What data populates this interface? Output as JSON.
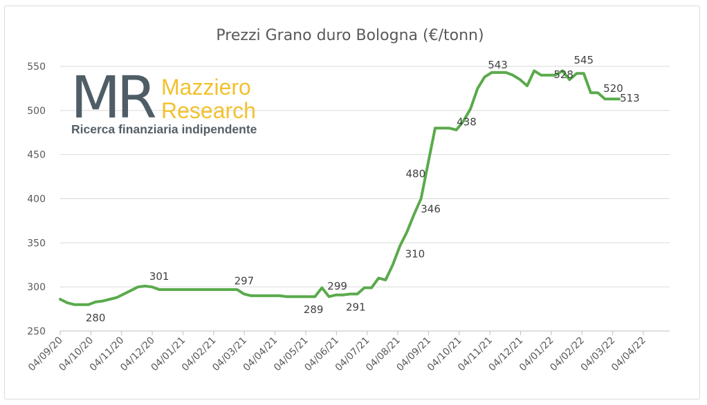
{
  "chart_data": {
    "type": "line",
    "title": "Prezzi Grano duro Bologna (€/tonn)",
    "xlabel": "",
    "ylabel": "",
    "ylim": [
      250,
      550
    ],
    "y_ticks": [
      250,
      300,
      350,
      400,
      450,
      500,
      550
    ],
    "x_ticks": [
      "04/09/20",
      "04/10/20",
      "04/11/20",
      "04/12/20",
      "04/01/21",
      "04/02/21",
      "04/03/21",
      "04/04/21",
      "04/05/21",
      "04/06/21",
      "04/07/21",
      "04/08/21",
      "04/09/21",
      "04/10/21",
      "04/11/21",
      "04/12/21",
      "04/01/22",
      "04/02/22",
      "04/03/22",
      "04/04/22"
    ],
    "grid": "horizontal",
    "line_color": "#5aaa4c",
    "series": [
      {
        "x": [
          "2020-09-04",
          "2020-09-11",
          "2020-09-18",
          "2020-09-25",
          "2020-10-02",
          "2020-10-09",
          "2020-10-16",
          "2020-10-23",
          "2020-10-30",
          "2020-11-06",
          "2020-11-13",
          "2020-11-20",
          "2020-11-27",
          "2020-12-04",
          "2020-12-11",
          "2020-12-18",
          "2020-12-25",
          "2021-01-01",
          "2021-01-08",
          "2021-01-15",
          "2021-01-22",
          "2021-01-29",
          "2021-02-05",
          "2021-02-12",
          "2021-02-19",
          "2021-02-26",
          "2021-03-05",
          "2021-03-12",
          "2021-03-19",
          "2021-03-26",
          "2021-04-02",
          "2021-04-09",
          "2021-04-16",
          "2021-04-23",
          "2021-04-30",
          "2021-05-07",
          "2021-05-14",
          "2021-05-21",
          "2021-05-28",
          "2021-06-04",
          "2021-06-11",
          "2021-06-18",
          "2021-06-25",
          "2021-07-02",
          "2021-07-09",
          "2021-07-16",
          "2021-07-23",
          "2021-07-30",
          "2021-08-06",
          "2021-08-13",
          "2021-08-20",
          "2021-08-27",
          "2021-09-03",
          "2021-09-10",
          "2021-09-17",
          "2021-09-24",
          "2021-10-01",
          "2021-10-08",
          "2021-10-15",
          "2021-10-22",
          "2021-10-29",
          "2021-11-05",
          "2021-11-12",
          "2021-11-19",
          "2021-11-26",
          "2021-12-03",
          "2021-12-10",
          "2021-12-17",
          "2021-12-24",
          "2021-12-31",
          "2022-01-07",
          "2022-01-14",
          "2022-01-21",
          "2022-01-28",
          "2022-02-04",
          "2022-02-11",
          "2022-02-18",
          "2022-02-25",
          "2022-03-04",
          "2022-03-11"
        ],
        "values": [
          286,
          282,
          280,
          280,
          280,
          283,
          284,
          286,
          288,
          292,
          296,
          300,
          301,
          300,
          297,
          297,
          297,
          297,
          297,
          297,
          297,
          297,
          297,
          297,
          297,
          297,
          292,
          290,
          290,
          290,
          290,
          290,
          289,
          289,
          289,
          289,
          289,
          299,
          289,
          291,
          291,
          292,
          292,
          299,
          299,
          310,
          308,
          325,
          346,
          362,
          382,
          400,
          440,
          480,
          480,
          480,
          478,
          488,
          502,
          525,
          538,
          543,
          543,
          543,
          540,
          535,
          528,
          545,
          540,
          540,
          540,
          545,
          535,
          542,
          542,
          520,
          520,
          513,
          513,
          513
        ]
      }
    ],
    "data_labels": [
      {
        "x": "2020-10-09",
        "text": "280"
      },
      {
        "x": "2020-12-11",
        "text": "301"
      },
      {
        "x": "2021-03-05",
        "text": "297"
      },
      {
        "x": "2021-05-14",
        "text": "289"
      },
      {
        "x": "2021-05-28",
        "text": "299"
      },
      {
        "x": "2021-06-18",
        "text": "291"
      },
      {
        "x": "2021-08-06",
        "text": "310"
      },
      {
        "x": "2021-08-27",
        "text": "346"
      },
      {
        "x": "2021-09-03",
        "text": "480"
      },
      {
        "x": "2021-09-24",
        "text": "438"
      },
      {
        "x": "2021-11-26",
        "text": "543"
      },
      {
        "x": "2021-12-31",
        "text": "528"
      },
      {
        "x": "2022-02-04",
        "text": "545"
      },
      {
        "x": "2022-02-25",
        "text": "520"
      },
      {
        "x": "2022-03-25",
        "text": "513"
      }
    ]
  },
  "logo": {
    "mark": "MR",
    "name_line1": "Mazziero",
    "name_line2": "Research",
    "tagline": "Ricerca finanziaria indipendente",
    "colors": {
      "mark": "#4f5d66",
      "name": "#f2c12e",
      "tagline": "#555f66"
    }
  }
}
